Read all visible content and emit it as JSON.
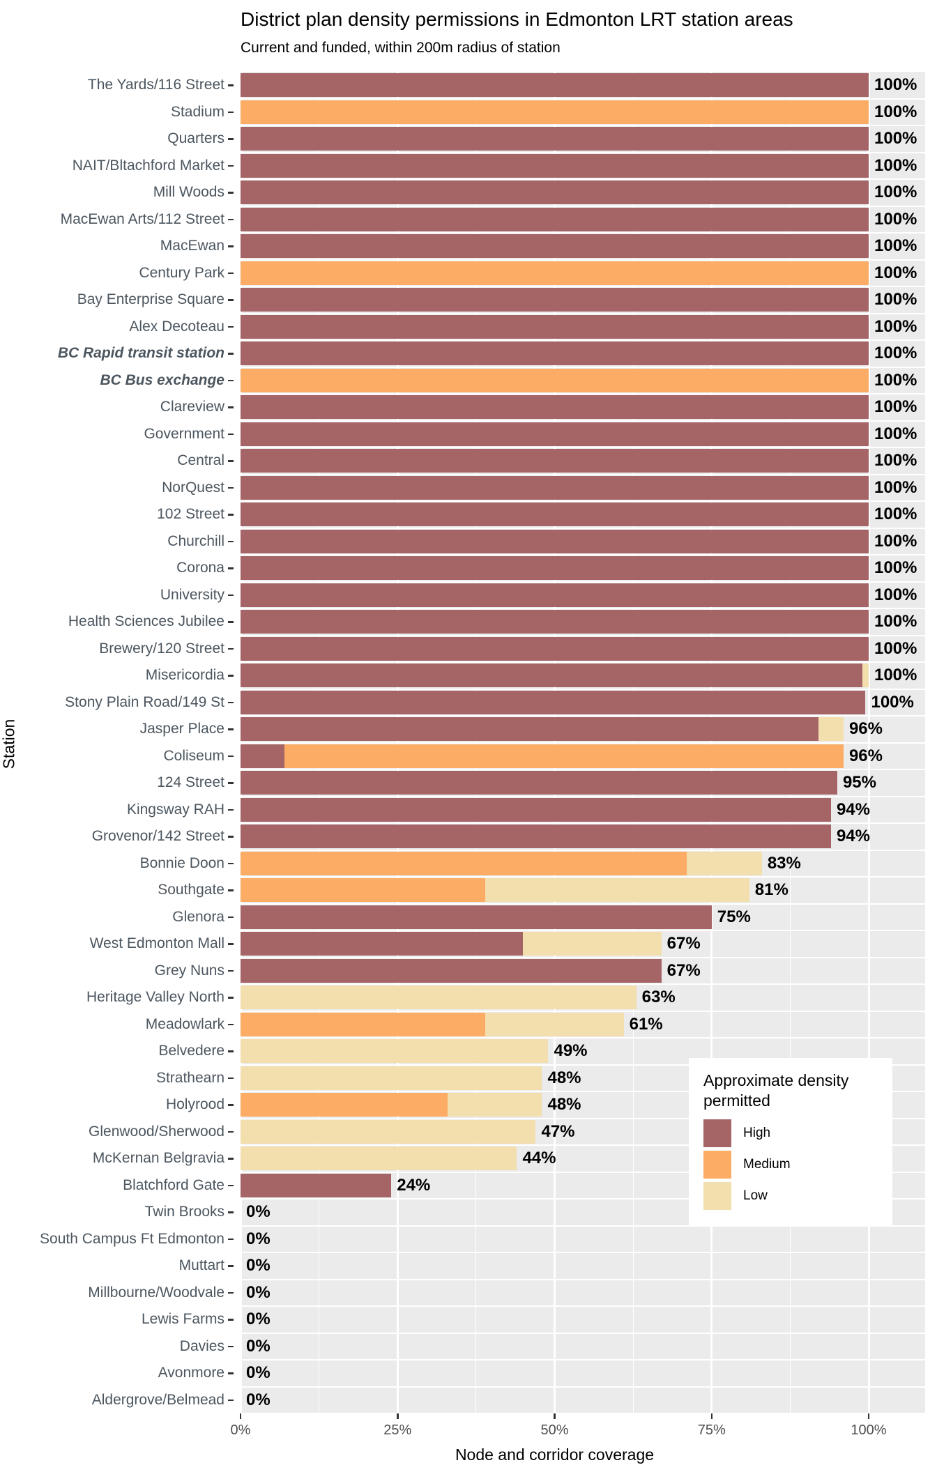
{
  "title": "District plan density permissions in Edmonton LRT station areas",
  "subtitle": "Current and funded, within 200m radius of station",
  "x_axis": {
    "label": "Node and corridor coverage",
    "ticks": [
      "0%",
      "25%",
      "50%",
      "75%",
      "100%"
    ],
    "tick_values": [
      0,
      25,
      50,
      75,
      100
    ],
    "minor_values": [
      12.5,
      37.5,
      62.5,
      87.5
    ]
  },
  "y_axis": {
    "label": "Station"
  },
  "legend": {
    "title": "Approximate density permitted",
    "items": [
      {
        "label": "High",
        "density": "High"
      },
      {
        "label": "Medium",
        "density": "Medium"
      },
      {
        "label": "Low",
        "density": "Low"
      }
    ]
  },
  "chart_data": {
    "type": "bar",
    "orientation": "horizontal",
    "stacked": true,
    "grid": true,
    "legend_position": "inside-right",
    "xlim": [
      0,
      109
    ],
    "xlabel": "Node and corridor coverage",
    "ylabel": "Station",
    "colors": {
      "High": "#a56466",
      "Medium": "#fcac64",
      "Low": "#f3deae",
      "panel_bg": "#ebebeb"
    },
    "rows": [
      {
        "station": "The Yards/116 Street",
        "label": "100%",
        "total": 100,
        "segments": [
          {
            "density": "High",
            "value": 100
          }
        ]
      },
      {
        "station": "Stadium",
        "label": "100%",
        "total": 100,
        "segments": [
          {
            "density": "Medium",
            "value": 100
          }
        ]
      },
      {
        "station": "Quarters",
        "label": "100%",
        "total": 100,
        "segments": [
          {
            "density": "High",
            "value": 100
          }
        ]
      },
      {
        "station": "NAIT/Bltachford Market",
        "label": "100%",
        "total": 100,
        "segments": [
          {
            "density": "High",
            "value": 100
          }
        ]
      },
      {
        "station": "Mill Woods",
        "label": "100%",
        "total": 100,
        "segments": [
          {
            "density": "High",
            "value": 100
          }
        ]
      },
      {
        "station": "MacEwan Arts/112 Street",
        "label": "100%",
        "total": 100,
        "segments": [
          {
            "density": "High",
            "value": 100
          }
        ]
      },
      {
        "station": "MacEwan",
        "label": "100%",
        "total": 100,
        "segments": [
          {
            "density": "High",
            "value": 100
          }
        ]
      },
      {
        "station": "Century Park",
        "label": "100%",
        "total": 100,
        "segments": [
          {
            "density": "Medium",
            "value": 100
          }
        ]
      },
      {
        "station": "Bay Enterprise Square",
        "label": "100%",
        "total": 100,
        "segments": [
          {
            "density": "High",
            "value": 100
          }
        ]
      },
      {
        "station": "Alex Decoteau",
        "label": "100%",
        "total": 100,
        "segments": [
          {
            "density": "High",
            "value": 100
          }
        ]
      },
      {
        "station": "BC Rapid transit station",
        "label": "100%",
        "total": 100,
        "emphasis": true,
        "segments": [
          {
            "density": "High",
            "value": 100
          }
        ]
      },
      {
        "station": "BC Bus exchange",
        "label": "100%",
        "total": 100,
        "emphasis": true,
        "segments": [
          {
            "density": "Medium",
            "value": 100
          }
        ]
      },
      {
        "station": "Clareview",
        "label": "100%",
        "total": 100,
        "segments": [
          {
            "density": "High",
            "value": 100
          }
        ]
      },
      {
        "station": "Government",
        "label": "100%",
        "total": 100,
        "segments": [
          {
            "density": "High",
            "value": 100
          }
        ]
      },
      {
        "station": "Central",
        "label": "100%",
        "total": 100,
        "segments": [
          {
            "density": "High",
            "value": 100
          }
        ]
      },
      {
        "station": "NorQuest",
        "label": "100%",
        "total": 100,
        "segments": [
          {
            "density": "High",
            "value": 100
          }
        ]
      },
      {
        "station": "102 Street",
        "label": "100%",
        "total": 100,
        "segments": [
          {
            "density": "High",
            "value": 100
          }
        ]
      },
      {
        "station": "Churchill",
        "label": "100%",
        "total": 100,
        "segments": [
          {
            "density": "High",
            "value": 100
          }
        ]
      },
      {
        "station": "Corona",
        "label": "100%",
        "total": 100,
        "segments": [
          {
            "density": "High",
            "value": 100
          }
        ]
      },
      {
        "station": "University",
        "label": "100%",
        "total": 100,
        "segments": [
          {
            "density": "High",
            "value": 100
          }
        ]
      },
      {
        "station": "Health Sciences Jubilee",
        "label": "100%",
        "total": 100,
        "segments": [
          {
            "density": "High",
            "value": 100
          }
        ]
      },
      {
        "station": "Brewery/120 Street",
        "label": "100%",
        "total": 100,
        "segments": [
          {
            "density": "High",
            "value": 100
          }
        ]
      },
      {
        "station": "Misericordia",
        "label": "100%",
        "total": 100,
        "segments": [
          {
            "density": "High",
            "value": 99
          },
          {
            "density": "Low",
            "value": 1
          }
        ]
      },
      {
        "station": "Stony Plain Road/149 St",
        "label": "100%",
        "total": 100,
        "segments": [
          {
            "density": "High",
            "value": 99.5
          }
        ]
      },
      {
        "station": "Jasper Place",
        "label": "96%",
        "total": 96,
        "segments": [
          {
            "density": "High",
            "value": 92
          },
          {
            "density": "Low",
            "value": 4
          }
        ]
      },
      {
        "station": "Coliseum",
        "label": "96%",
        "total": 96,
        "segments": [
          {
            "density": "High",
            "value": 7
          },
          {
            "density": "Medium",
            "value": 89
          }
        ]
      },
      {
        "station": "124 Street",
        "label": "95%",
        "total": 95,
        "segments": [
          {
            "density": "High",
            "value": 95
          }
        ]
      },
      {
        "station": "Kingsway RAH",
        "label": "94%",
        "total": 94,
        "segments": [
          {
            "density": "High",
            "value": 94
          }
        ]
      },
      {
        "station": "Grovenor/142 Street",
        "label": "94%",
        "total": 94,
        "segments": [
          {
            "density": "High",
            "value": 94
          }
        ]
      },
      {
        "station": "Bonnie Doon",
        "label": "83%",
        "total": 83,
        "segments": [
          {
            "density": "Medium",
            "value": 71
          },
          {
            "density": "Low",
            "value": 12
          }
        ]
      },
      {
        "station": "Southgate",
        "label": "81%",
        "total": 81,
        "segments": [
          {
            "density": "Medium",
            "value": 39
          },
          {
            "density": "Low",
            "value": 42
          }
        ]
      },
      {
        "station": "Glenora",
        "label": "75%",
        "total": 75,
        "segments": [
          {
            "density": "High",
            "value": 75
          }
        ]
      },
      {
        "station": "West Edmonton Mall",
        "label": "67%",
        "total": 67,
        "segments": [
          {
            "density": "High",
            "value": 45
          },
          {
            "density": "Low",
            "value": 22
          }
        ]
      },
      {
        "station": "Grey Nuns",
        "label": "67%",
        "total": 67,
        "segments": [
          {
            "density": "High",
            "value": 67
          }
        ]
      },
      {
        "station": "Heritage Valley North",
        "label": "63%",
        "total": 63,
        "segments": [
          {
            "density": "Low",
            "value": 63
          }
        ]
      },
      {
        "station": "Meadowlark",
        "label": "61%",
        "total": 61,
        "segments": [
          {
            "density": "Medium",
            "value": 39
          },
          {
            "density": "Low",
            "value": 22
          }
        ]
      },
      {
        "station": "Belvedere",
        "label": "49%",
        "total": 49,
        "segments": [
          {
            "density": "Low",
            "value": 49
          }
        ]
      },
      {
        "station": "Strathearn",
        "label": "48%",
        "total": 48,
        "segments": [
          {
            "density": "Low",
            "value": 48
          }
        ]
      },
      {
        "station": "Holyrood",
        "label": "48%",
        "total": 48,
        "segments": [
          {
            "density": "Medium",
            "value": 33
          },
          {
            "density": "Low",
            "value": 15
          }
        ]
      },
      {
        "station": "Glenwood/Sherwood",
        "label": "47%",
        "total": 47,
        "segments": [
          {
            "density": "Low",
            "value": 47
          }
        ]
      },
      {
        "station": "McKernan Belgravia",
        "label": "44%",
        "total": 44,
        "segments": [
          {
            "density": "Low",
            "value": 44
          }
        ]
      },
      {
        "station": "Blatchford Gate",
        "label": "24%",
        "total": 24,
        "segments": [
          {
            "density": "High",
            "value": 24
          }
        ]
      },
      {
        "station": "Twin Brooks",
        "label": "0%",
        "total": 0,
        "segments": []
      },
      {
        "station": "South Campus Ft Edmonton",
        "label": "0%",
        "total": 0,
        "segments": []
      },
      {
        "station": "Muttart",
        "label": "0%",
        "total": 0,
        "segments": []
      },
      {
        "station": "Millbourne/Woodvale",
        "label": "0%",
        "total": 0,
        "segments": []
      },
      {
        "station": "Lewis Farms",
        "label": "0%",
        "total": 0,
        "segments": []
      },
      {
        "station": "Davies",
        "label": "0%",
        "total": 0,
        "segments": []
      },
      {
        "station": "Avonmore",
        "label": "0%",
        "total": 0,
        "segments": []
      },
      {
        "station": "Aldergrove/Belmead",
        "label": "0%",
        "total": 0,
        "segments": []
      }
    ]
  }
}
